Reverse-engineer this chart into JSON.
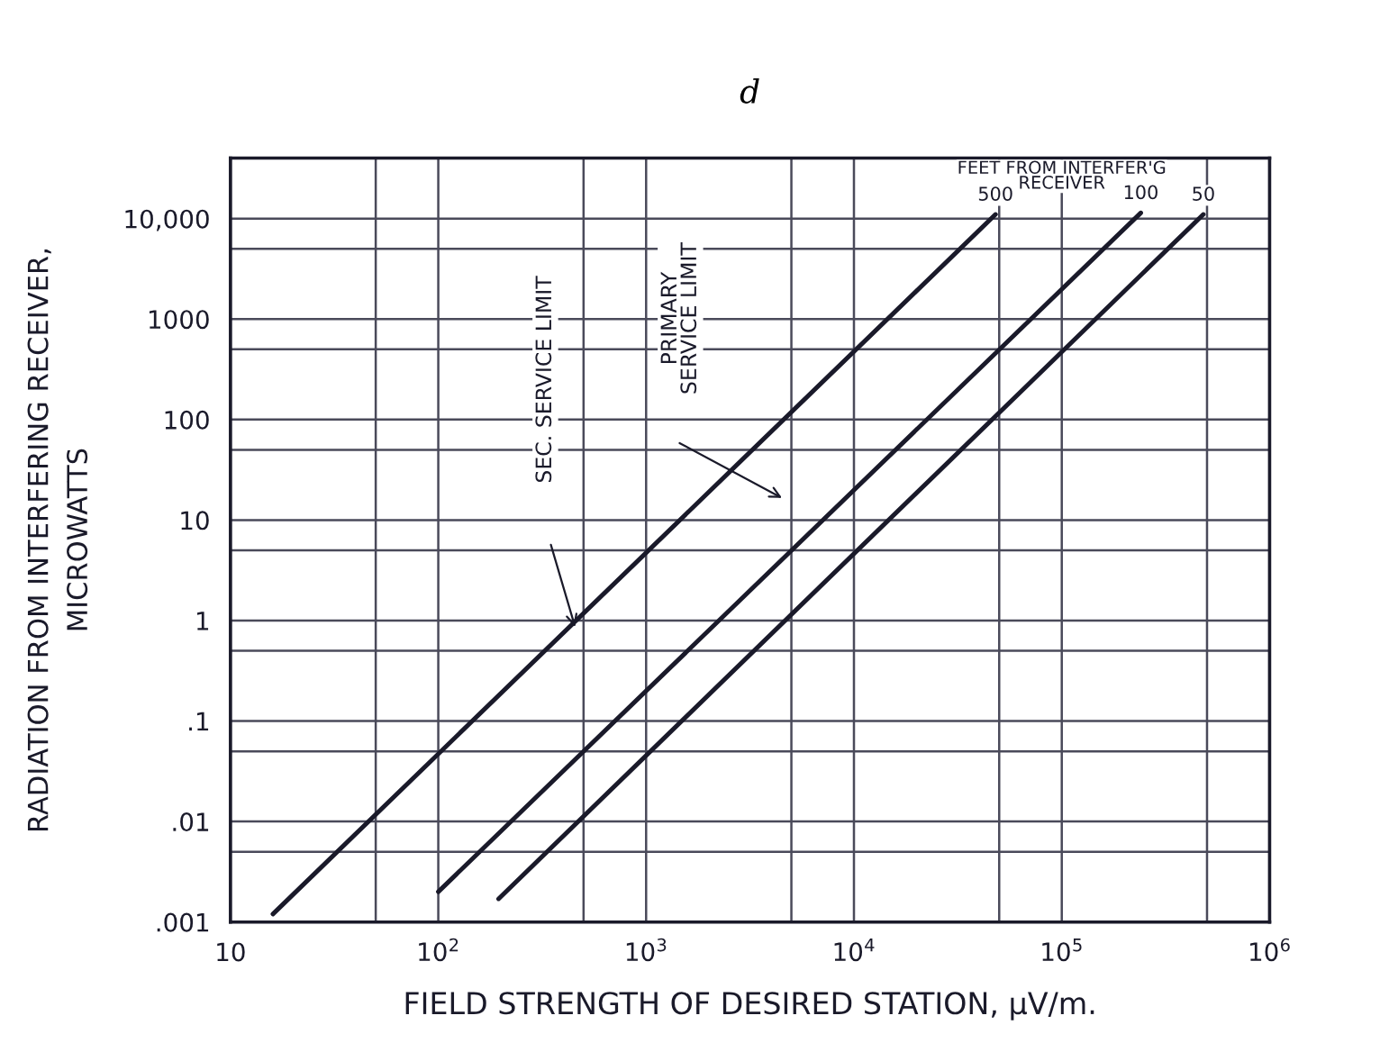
{
  "chart_data": {
    "type": "line",
    "title": "d",
    "xlabel": "FIELD STRENGTH OF DESIRED STATION, μV/m.",
    "ylabel": "RADIATION FROM INTERFERING RECEIVER,\nMICROWATTS",
    "legend_title": "FEET FROM INTERFER'G\nRECEIVER",
    "log": "xy",
    "grid": true,
    "xlim": [
      10,
      1000000
    ],
    "ylim": [
      0.001,
      40000
    ],
    "xticks": [
      10,
      {
        "value": 50,
        "label": null
      },
      {
        "value": 100,
        "label": "10$^{2}$"
      },
      {
        "value": 500,
        "label": null
      },
      {
        "value": 1000,
        "label": "10$^{3}$"
      },
      {
        "value": 5000,
        "label": null
      },
      {
        "value": 10000,
        "label": "10$^{4}$"
      },
      {
        "value": 50000,
        "label": null
      },
      {
        "value": 100000,
        "label": "10$^{5}$"
      },
      {
        "value": 500000,
        "label": null
      },
      {
        "value": 1000000,
        "label": "10$^{6}$"
      }
    ],
    "yticks": [
      {
        "value": 0.001,
        "label": ".001"
      },
      {
        "value": 0.005,
        "label": null
      },
      {
        "value": 0.01,
        "label": ".01"
      },
      {
        "value": 0.05,
        "label": null
      },
      {
        "value": 0.1,
        "label": ".1"
      },
      {
        "value": 0.5,
        "label": null
      },
      1,
      {
        "value": 5,
        "label": null
      },
      10,
      {
        "value": 50,
        "label": null
      },
      100,
      {
        "value": 500,
        "label": null
      },
      1000,
      {
        "value": 5000,
        "label": null
      },
      {
        "value": 10000,
        "label": "10,000"
      }
    ],
    "series": [
      {
        "name": "500",
        "color": "#1a1a2a",
        "x": [
          16,
          48000
        ],
        "values": [
          0.0012,
          11000
        ]
      },
      {
        "name": "100",
        "color": "#1a1a2a",
        "x": [
          100,
          240000
        ],
        "values": [
          0.002,
          11400
        ]
      },
      {
        "name": "50",
        "color": "#1a1a2a",
        "x": [
          195,
          480000
        ],
        "values": [
          0.0017,
          11000
        ]
      }
    ],
    "annotations": [
      "SEC. SERVICE LIMIT",
      "PRIMARY\nSERVICE LIMIT"
    ]
  }
}
